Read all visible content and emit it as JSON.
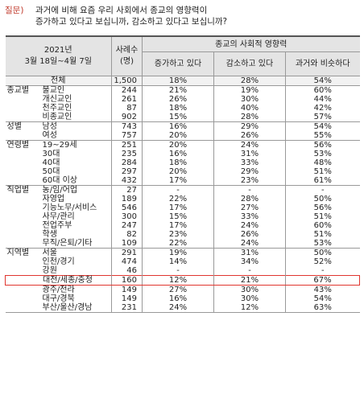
{
  "question": {
    "label": "질문)",
    "line1": "과거에 비해 요즘 우리 사회에서 종교의 영향력이",
    "line2": "증가하고 있다고 보십니까, 감소하고 있다고 보십니까?"
  },
  "header": {
    "year": "2021년",
    "dates": "3월 18일~4월 7일",
    "n_line1": "사례수",
    "n_line2": "(명)",
    "group": "종교의 사회적 영향력",
    "cols": [
      "증가하고 있다",
      "감소하고 있다",
      "과거와 비슷하다"
    ]
  },
  "rows": [
    {
      "group": "",
      "label": "전체",
      "n": "1,500",
      "v": [
        "18%",
        "28%",
        "54%"
      ],
      "type": "total"
    },
    {
      "group": "종교별",
      "label": "불교인",
      "n": "244",
      "v": [
        "21%",
        "19%",
        "60%"
      ]
    },
    {
      "group": "",
      "label": "개신교인",
      "n": "261",
      "v": [
        "26%",
        "30%",
        "44%"
      ]
    },
    {
      "group": "",
      "label": "천주교인",
      "n": "87",
      "v": [
        "18%",
        "40%",
        "42%"
      ]
    },
    {
      "group": "",
      "label": "비종교인",
      "n": "902",
      "v": [
        "15%",
        "28%",
        "57%"
      ]
    },
    {
      "group": "성별",
      "label": "남성",
      "n": "743",
      "v": [
        "16%",
        "29%",
        "54%"
      ]
    },
    {
      "group": "",
      "label": "여성",
      "n": "757",
      "v": [
        "20%",
        "26%",
        "55%"
      ]
    },
    {
      "group": "연령별",
      "label": "19~29세",
      "n": "251",
      "v": [
        "20%",
        "24%",
        "56%"
      ]
    },
    {
      "group": "",
      "label": "30대",
      "n": "235",
      "v": [
        "16%",
        "31%",
        "53%"
      ]
    },
    {
      "group": "",
      "label": "40대",
      "n": "284",
      "v": [
        "18%",
        "33%",
        "48%"
      ]
    },
    {
      "group": "",
      "label": "50대",
      "n": "297",
      "v": [
        "20%",
        "29%",
        "51%"
      ]
    },
    {
      "group": "",
      "label": "60대 이상",
      "n": "432",
      "v": [
        "17%",
        "23%",
        "61%"
      ]
    },
    {
      "group": "직업별",
      "label": "농/임/어업",
      "n": "27",
      "v": [
        "-",
        "-",
        "-"
      ]
    },
    {
      "group": "",
      "label": "자영업",
      "n": "189",
      "v": [
        "22%",
        "28%",
        "50%"
      ]
    },
    {
      "group": "",
      "label": "기능노무/서비스",
      "n": "546",
      "v": [
        "17%",
        "27%",
        "56%"
      ]
    },
    {
      "group": "",
      "label": "사무/관리",
      "n": "300",
      "v": [
        "15%",
        "33%",
        "51%"
      ]
    },
    {
      "group": "",
      "label": "전업주부",
      "n": "247",
      "v": [
        "17%",
        "24%",
        "60%"
      ]
    },
    {
      "group": "",
      "label": "학생",
      "n": "82",
      "v": [
        "23%",
        "26%",
        "51%"
      ]
    },
    {
      "group": "",
      "label": "무직/은퇴/기타",
      "n": "109",
      "v": [
        "22%",
        "24%",
        "53%"
      ]
    },
    {
      "group": "지역별",
      "label": "서울",
      "n": "291",
      "v": [
        "19%",
        "31%",
        "50%"
      ]
    },
    {
      "group": "",
      "label": "인천/경기",
      "n": "474",
      "v": [
        "14%",
        "34%",
        "52%"
      ]
    },
    {
      "group": "",
      "label": "강원",
      "n": "46",
      "v": [
        "-",
        "-",
        "-"
      ]
    },
    {
      "group": "",
      "label": "대전/세종/충청",
      "n": "160",
      "v": [
        "12%",
        "21%",
        "67%"
      ],
      "type": "highlight"
    },
    {
      "group": "",
      "label": "광주/전라",
      "n": "149",
      "v": [
        "27%",
        "30%",
        "43%"
      ]
    },
    {
      "group": "",
      "label": "대구/경북",
      "n": "149",
      "v": [
        "16%",
        "30%",
        "54%"
      ]
    },
    {
      "group": "",
      "label": "부산/울산/경남",
      "n": "231",
      "v": [
        "24%",
        "12%",
        "63%"
      ]
    }
  ],
  "colors": {
    "highlight_border": "#e0362f",
    "header_bg": "#e4e4e4",
    "question_label": "#c0392b"
  }
}
